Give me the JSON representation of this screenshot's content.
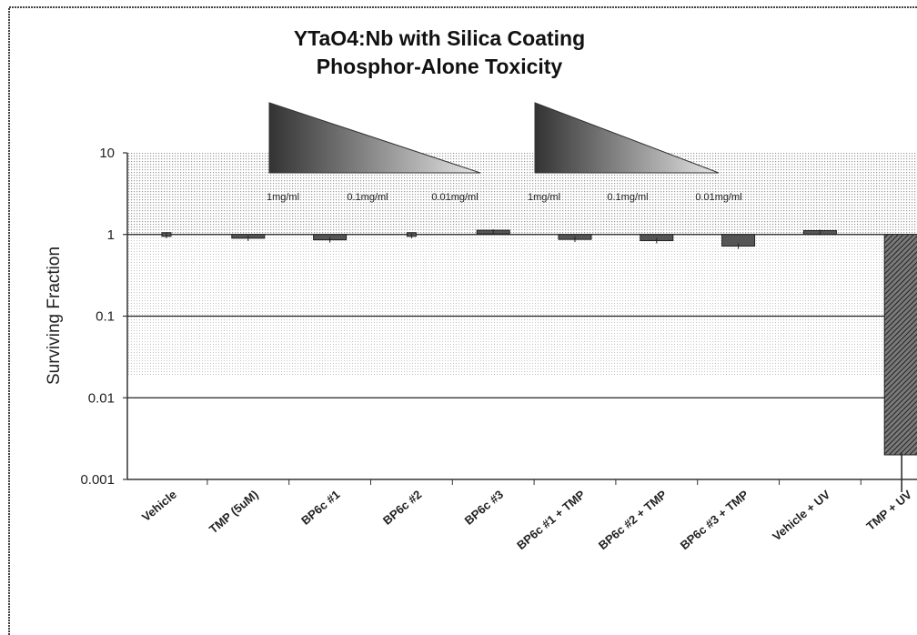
{
  "chart_data": {
    "type": "bar",
    "title": "YTaO4:Nb with Silica Coating",
    "subtitle": "Phosphor-Alone Toxicity",
    "ylabel": "Surviving Fraction",
    "xlabel": "",
    "yscale": "log",
    "ylim": [
      0.001,
      10
    ],
    "yticks": [
      "10",
      "1",
      "0.1",
      "0.01",
      "0.001"
    ],
    "ytick_values": [
      10,
      1,
      0.1,
      0.01,
      0.001
    ],
    "categories": [
      "Vehicle",
      "TMP (5uM)",
      "BP6c #1",
      "BP6c #2",
      "BP6c #3",
      "BP6c #1 + TMP",
      "BP6c #2 + TMP",
      "BP6c #3 + TMP",
      "Vehicle + UV",
      "TMP + UV"
    ],
    "values": [
      0.97,
      0.9,
      0.86,
      0.97,
      1.07,
      0.87,
      0.84,
      0.72,
      1.06,
      0.002
    ],
    "concentration_labels": [
      "1mg/ml",
      "0.1mg/ml",
      "0.01mg/ml",
      "1mg/ml",
      "0.1mg/ml",
      "0.01mg/ml"
    ],
    "grid": true,
    "legend": "none",
    "colors": {
      "bar": "#4a4a4a",
      "frame": "#555555",
      "shading": "#cccccc"
    }
  }
}
